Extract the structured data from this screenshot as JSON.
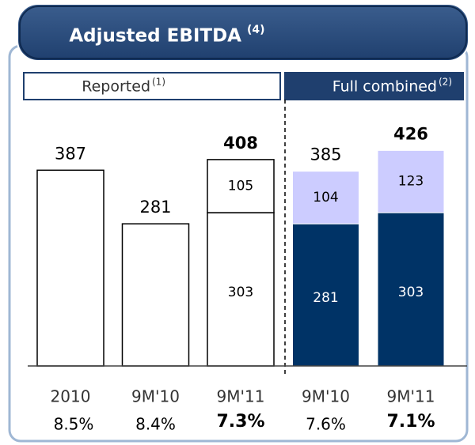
{
  "chart_data": {
    "type": "stacked_bar",
    "title": "Adjusted EBITDA",
    "title_note": "(4)",
    "groups": [
      {
        "label": "Reported",
        "note": "(1)"
      },
      {
        "label": "Full combined",
        "note": "(2)"
      }
    ],
    "categories": [
      "2010",
      "9M'10",
      "9M'11",
      "9M'10",
      "9M'11"
    ],
    "series": [
      {
        "color": "#003366",
        "values": [
          387,
          281,
          303,
          281,
          303
        ]
      },
      {
        "color": "#ccccff",
        "values": [
          null,
          null,
          105,
          104,
          123
        ]
      }
    ],
    "totals": [
      387,
      281,
      408,
      385,
      426
    ],
    "margins": [
      "8.5%",
      "8.4%",
      "7.3%",
      "7.6%",
      "7.1%"
    ],
    "highlight": [
      false,
      false,
      true,
      false,
      true
    ],
    "group_of": [
      0,
      0,
      0,
      1,
      1
    ],
    "ylim": [
      0,
      500
    ]
  }
}
